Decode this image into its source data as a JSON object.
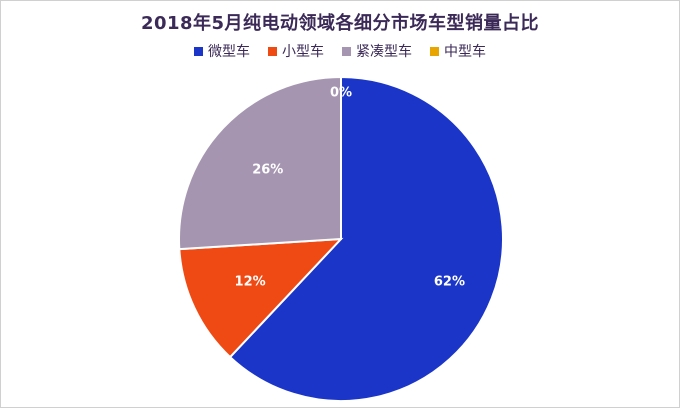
{
  "chart_data": {
    "type": "pie",
    "title": "2018年5月纯电动领域各细分市场车型销量占比",
    "categories": [
      "微型车",
      "小型车",
      "紧凑型车",
      "中型车"
    ],
    "values": [
      62,
      12,
      26,
      0
    ],
    "data_labels": [
      "62%",
      "12%",
      "26%",
      "0%"
    ],
    "colors": [
      "#1a35c8",
      "#f04a14",
      "#a595b0",
      "#e8a500"
    ],
    "legend_position": "top"
  }
}
